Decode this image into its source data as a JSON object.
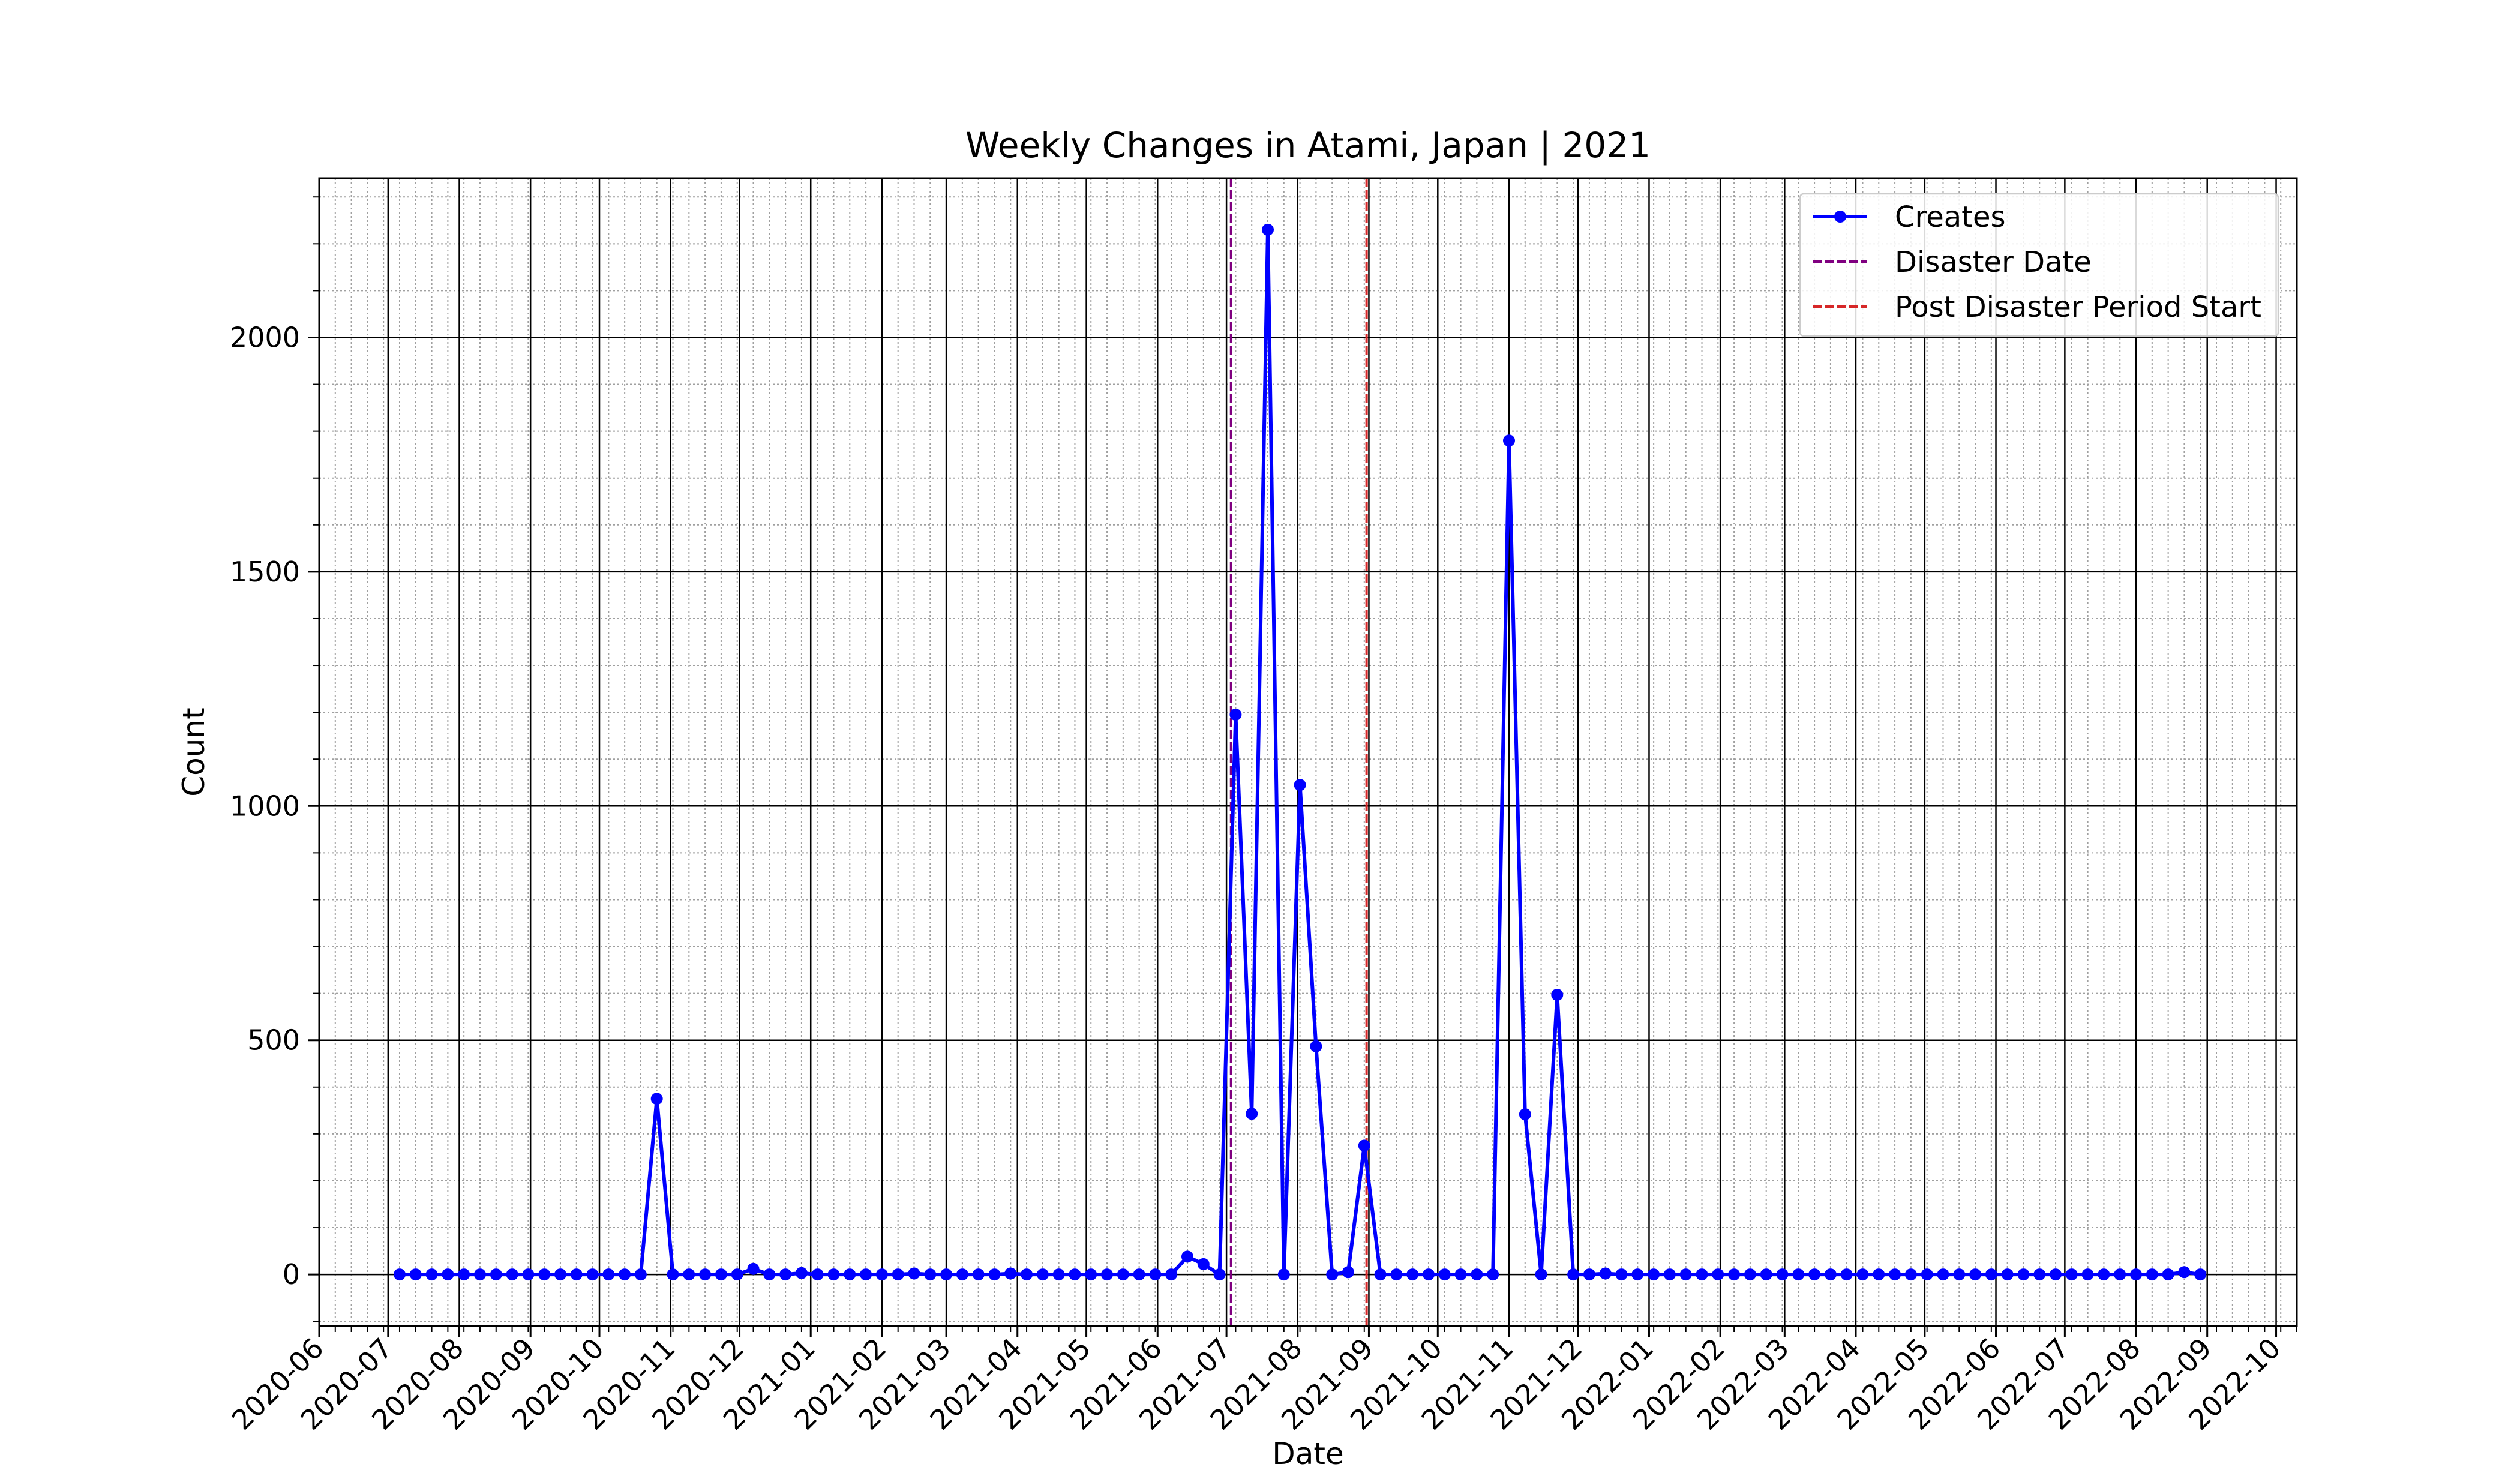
{
  "chart_data": {
    "type": "line",
    "title": "Weekly Changes in Atami, Japan | 2021",
    "xlabel": "Date",
    "ylabel": "Count",
    "x_axis_type": "date",
    "xlim": [
      "2020-06-01",
      "2022-10-10"
    ],
    "ylim": [
      -110,
      2340
    ],
    "grid": "major and minor",
    "legend_position": "top-right",
    "x_tick_labels": [
      "2020-06",
      "2020-07",
      "2020-08",
      "2020-09",
      "2020-10",
      "2020-11",
      "2020-12",
      "2021-01",
      "2021-02",
      "2021-03",
      "2021-04",
      "2021-05",
      "2021-06",
      "2021-07",
      "2021-08",
      "2021-09",
      "2021-10",
      "2021-11",
      "2021-12",
      "2022-01",
      "2022-02",
      "2022-03",
      "2022-04",
      "2022-05",
      "2022-06",
      "2022-07",
      "2022-08",
      "2022-09",
      "2022-10"
    ],
    "y_ticks": [
      0,
      500,
      1000,
      1500,
      2000
    ],
    "series": [
      {
        "name": "Creates",
        "color": "#0000ff",
        "x": [
          "2020-07-06",
          "2020-07-13",
          "2020-07-20",
          "2020-07-27",
          "2020-08-03",
          "2020-08-10",
          "2020-08-17",
          "2020-08-24",
          "2020-08-31",
          "2020-09-07",
          "2020-09-14",
          "2020-09-21",
          "2020-09-28",
          "2020-10-05",
          "2020-10-12",
          "2020-10-19",
          "2020-10-26",
          "2020-11-02",
          "2020-11-09",
          "2020-11-16",
          "2020-11-23",
          "2020-11-30",
          "2020-12-07",
          "2020-12-14",
          "2020-12-21",
          "2020-12-28",
          "2021-01-04",
          "2021-01-11",
          "2021-01-18",
          "2021-01-25",
          "2021-02-01",
          "2021-02-08",
          "2021-02-15",
          "2021-02-22",
          "2021-03-01",
          "2021-03-08",
          "2021-03-15",
          "2021-03-22",
          "2021-03-29",
          "2021-04-05",
          "2021-04-12",
          "2021-04-19",
          "2021-04-26",
          "2021-05-03",
          "2021-05-10",
          "2021-05-17",
          "2021-05-24",
          "2021-05-31",
          "2021-06-07",
          "2021-06-14",
          "2021-06-21",
          "2021-06-28",
          "2021-07-05",
          "2021-07-12",
          "2021-07-19",
          "2021-07-26",
          "2021-08-02",
          "2021-08-09",
          "2021-08-16",
          "2021-08-23",
          "2021-08-30",
          "2021-09-06",
          "2021-09-13",
          "2021-09-20",
          "2021-09-27",
          "2021-10-04",
          "2021-10-11",
          "2021-10-18",
          "2021-10-25",
          "2021-11-01",
          "2021-11-08",
          "2021-11-15",
          "2021-11-22",
          "2021-11-29",
          "2021-12-06",
          "2021-12-13",
          "2021-12-20",
          "2021-12-27",
          "2022-01-03",
          "2022-01-10",
          "2022-01-17",
          "2022-01-24",
          "2022-01-31",
          "2022-02-07",
          "2022-02-14",
          "2022-02-21",
          "2022-02-28",
          "2022-03-07",
          "2022-03-14",
          "2022-03-21",
          "2022-03-28",
          "2022-04-04",
          "2022-04-11",
          "2022-04-18",
          "2022-04-25",
          "2022-05-02",
          "2022-05-09",
          "2022-05-16",
          "2022-05-23",
          "2022-05-30",
          "2022-06-06",
          "2022-06-13",
          "2022-06-20",
          "2022-06-27",
          "2022-07-04",
          "2022-07-11",
          "2022-07-18",
          "2022-07-25",
          "2022-08-01",
          "2022-08-08",
          "2022-08-15",
          "2022-08-22",
          "2022-08-29"
        ],
        "y": [
          0,
          0,
          0,
          0,
          0,
          0,
          0,
          0,
          0,
          0,
          0,
          0,
          0,
          0,
          0,
          0,
          375,
          0,
          0,
          0,
          0,
          0,
          12,
          0,
          0,
          3,
          0,
          0,
          0,
          0,
          0,
          0,
          2,
          0,
          0,
          0,
          0,
          0,
          2,
          0,
          0,
          0,
          0,
          0,
          0,
          0,
          0,
          0,
          0,
          38,
          22,
          0,
          1195,
          343,
          2230,
          0,
          1045,
          487,
          0,
          5,
          275,
          0,
          0,
          0,
          0,
          0,
          0,
          0,
          0,
          1780,
          342,
          0,
          597,
          0,
          0,
          2,
          0,
          0,
          0,
          0,
          0,
          0,
          0,
          0,
          0,
          0,
          0,
          0,
          0,
          0,
          0,
          0,
          0,
          0,
          0,
          0,
          0,
          0,
          0,
          0,
          0,
          0,
          0,
          0,
          0,
          0,
          0,
          0,
          0,
          0,
          0,
          5,
          0
        ]
      }
    ],
    "vlines": [
      {
        "name": "Disaster Date",
        "x": "2021-07-03",
        "color": "#800080",
        "style": "dashed"
      },
      {
        "name": "Post Disaster Period Start",
        "x": "2021-08-31",
        "color": "#d62728",
        "style": "dashed"
      }
    ]
  }
}
